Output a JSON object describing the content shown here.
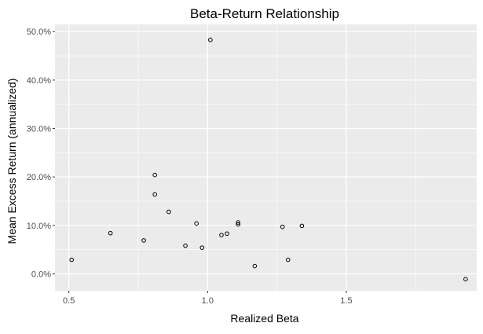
{
  "chart_data": {
    "type": "scatter",
    "title": "Beta-Return Relationship",
    "xlabel": "Realized Beta",
    "ylabel": "Mean Excess Return (annualized)",
    "xlim": [
      0.45,
      1.97
    ],
    "ylim": [
      -0.035,
      0.515
    ],
    "x_ticks": [
      {
        "value": 0.5,
        "label": "0.5"
      },
      {
        "value": 1.0,
        "label": "1.0"
      },
      {
        "value": 1.5,
        "label": "1.5"
      }
    ],
    "x_minor_ticks": [
      0.75,
      1.25,
      1.75
    ],
    "y_ticks": [
      {
        "value": 0.0,
        "label": "0.0%"
      },
      {
        "value": 0.1,
        "label": "10.0%"
      },
      {
        "value": 0.2,
        "label": "20.0%"
      },
      {
        "value": 0.3,
        "label": "30.0%"
      },
      {
        "value": 0.4,
        "label": "40.0%"
      },
      {
        "value": 0.5,
        "label": "50.0%"
      }
    ],
    "y_minor_ticks": [
      0.05,
      0.15,
      0.25,
      0.35,
      0.45
    ],
    "grid": true,
    "panel_background": "#ebebeb",
    "grid_color": "#ffffff",
    "point_style": "open-circle",
    "points": [
      {
        "x": 0.51,
        "y": 0.029
      },
      {
        "x": 0.65,
        "y": 0.084
      },
      {
        "x": 0.77,
        "y": 0.069
      },
      {
        "x": 0.81,
        "y": 0.204
      },
      {
        "x": 0.81,
        "y": 0.164
      },
      {
        "x": 0.86,
        "y": 0.128
      },
      {
        "x": 0.92,
        "y": 0.058
      },
      {
        "x": 0.96,
        "y": 0.104
      },
      {
        "x": 0.98,
        "y": 0.054
      },
      {
        "x": 1.01,
        "y": 0.483
      },
      {
        "x": 1.05,
        "y": 0.08
      },
      {
        "x": 1.07,
        "y": 0.083
      },
      {
        "x": 1.11,
        "y": 0.106
      },
      {
        "x": 1.11,
        "y": 0.102
      },
      {
        "x": 1.17,
        "y": 0.016
      },
      {
        "x": 1.27,
        "y": 0.097
      },
      {
        "x": 1.29,
        "y": 0.029
      },
      {
        "x": 1.34,
        "y": 0.099
      },
      {
        "x": 1.93,
        "y": -0.011
      }
    ]
  }
}
